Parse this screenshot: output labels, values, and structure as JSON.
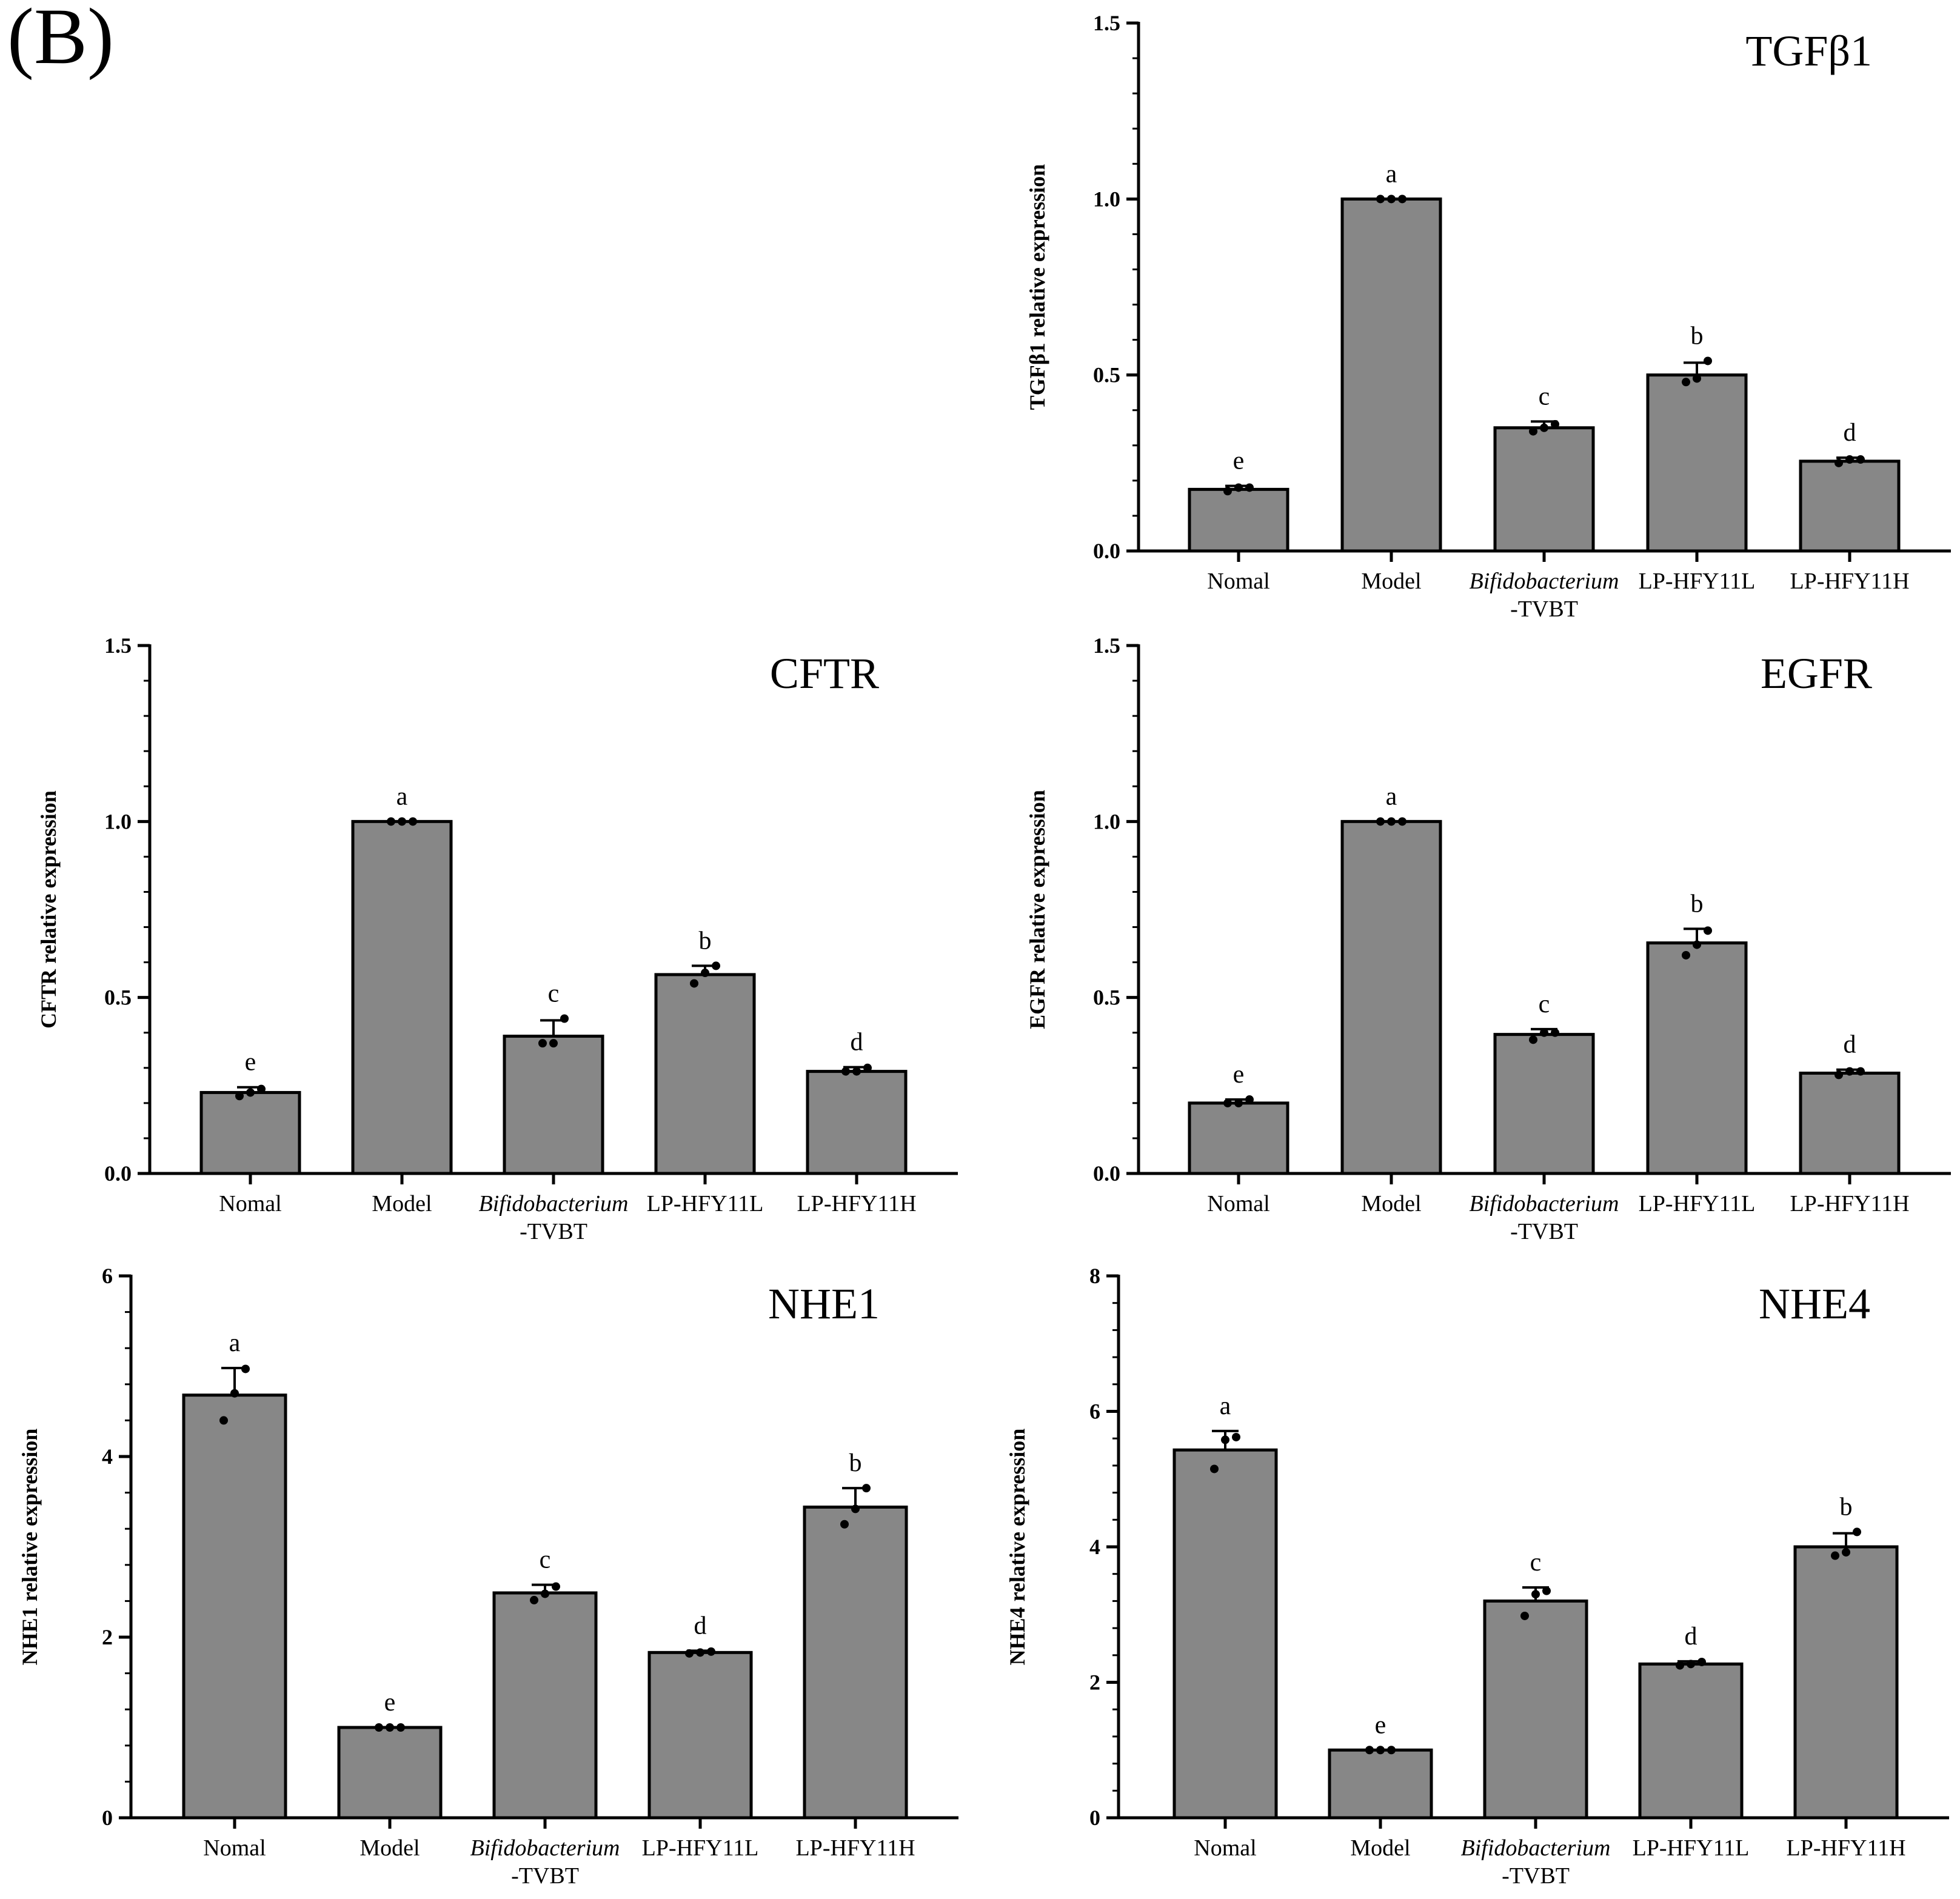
{
  "figure_label": "(B)",
  "colors": {
    "bar_fill": "#878787",
    "stroke": "#000000",
    "background": "#ffffff"
  },
  "chart_data": [
    {
      "type": "bar",
      "title": "TGFβ1",
      "ylabel": "TGFβ1 relative expression",
      "xlabel": "",
      "ylim": [
        0,
        1.5
      ],
      "yticks": [
        0.0,
        0.5,
        1.0,
        1.5
      ],
      "ytick_labels": [
        "0.0",
        "0.5",
        "1.0",
        "1.5"
      ],
      "minor_step": 0.1,
      "categories": [
        "Nomal",
        "Model",
        "Bifidobacterium-TVBT",
        "LP-HFY11L",
        "LP-HFY11H"
      ],
      "category_label_lines": [
        [
          "Nomal"
        ],
        [
          "Model"
        ],
        [
          "Bifidobacterium",
          "-TVBT"
        ],
        [
          "LP-HFY11L"
        ],
        [
          "LP-HFY11H"
        ]
      ],
      "values": [
        0.175,
        1.0,
        0.35,
        0.5,
        0.255
      ],
      "errors": [
        0.01,
        0.0,
        0.018,
        0.035,
        0.01
      ],
      "points": [
        [
          0.17,
          0.18,
          0.18
        ],
        [
          1.0,
          1.0,
          1.0
        ],
        [
          0.34,
          0.35,
          0.36
        ],
        [
          0.48,
          0.49,
          0.54
        ],
        [
          0.25,
          0.26,
          0.26
        ]
      ],
      "letters": [
        "e",
        "a",
        "c",
        "b",
        "d"
      ]
    },
    {
      "type": "bar",
      "title": "CFTR",
      "ylabel": "CFTR relative expression",
      "xlabel": "",
      "ylim": [
        0,
        1.5
      ],
      "yticks": [
        0.0,
        0.5,
        1.0,
        1.5
      ],
      "ytick_labels": [
        "0.0",
        "0.5",
        "1.0",
        "1.5"
      ],
      "minor_step": 0.1,
      "categories": [
        "Nomal",
        "Model",
        "Bifidobacterium-TVBT",
        "LP-HFY11L",
        "LP-HFY11H"
      ],
      "category_label_lines": [
        [
          "Nomal"
        ],
        [
          "Model"
        ],
        [
          "Bifidobacterium",
          "-TVBT"
        ],
        [
          "LP-HFY11L"
        ],
        [
          "LP-HFY11H"
        ]
      ],
      "values": [
        0.23,
        1.0,
        0.39,
        0.565,
        0.29
      ],
      "errors": [
        0.015,
        0.0,
        0.045,
        0.025,
        0.012
      ],
      "points": [
        [
          0.22,
          0.23,
          0.24
        ],
        [
          1.0,
          1.0,
          1.0
        ],
        [
          0.37,
          0.37,
          0.44
        ],
        [
          0.54,
          0.57,
          0.59
        ],
        [
          0.29,
          0.29,
          0.3
        ]
      ],
      "letters": [
        "e",
        "a",
        "c",
        "b",
        "d"
      ]
    },
    {
      "type": "bar",
      "title": "EGFR",
      "ylabel": "EGFR relative expression",
      "xlabel": "",
      "ylim": [
        0,
        1.5
      ],
      "yticks": [
        0.0,
        0.5,
        1.0,
        1.5
      ],
      "ytick_labels": [
        "0.0",
        "0.5",
        "1.0",
        "1.5"
      ],
      "minor_step": 0.1,
      "categories": [
        "Nomal",
        "Model",
        "Bifidobacterium-TVBT",
        "LP-HFY11L",
        "LP-HFY11H"
      ],
      "category_label_lines": [
        [
          "Nomal"
        ],
        [
          "Model"
        ],
        [
          "Bifidobacterium",
          "-TVBT"
        ],
        [
          "LP-HFY11L"
        ],
        [
          "LP-HFY11H"
        ]
      ],
      "values": [
        0.2,
        1.0,
        0.395,
        0.655,
        0.285
      ],
      "errors": [
        0.01,
        0.0,
        0.015,
        0.04,
        0.01
      ],
      "points": [
        [
          0.2,
          0.2,
          0.21
        ],
        [
          1.0,
          1.0,
          1.0
        ],
        [
          0.38,
          0.4,
          0.4
        ],
        [
          0.62,
          0.65,
          0.69
        ],
        [
          0.28,
          0.29,
          0.29
        ]
      ],
      "letters": [
        "e",
        "a",
        "c",
        "b",
        "d"
      ]
    },
    {
      "type": "bar",
      "title": "NHE1",
      "ylabel": "NHE1 relative expression",
      "xlabel": "",
      "ylim": [
        0,
        6
      ],
      "yticks": [
        0,
        2,
        4,
        6
      ],
      "ytick_labels": [
        "0",
        "2",
        "4",
        "6"
      ],
      "minor_step": 0.4,
      "categories": [
        "Nomal",
        "Model",
        "Bifidobacterium-TVBT",
        "LP-HFY11L",
        "LP-HFY11H"
      ],
      "category_label_lines": [
        [
          "Nomal"
        ],
        [
          "Model"
        ],
        [
          "Bifidobacterium",
          "-TVBT"
        ],
        [
          "LP-HFY11L"
        ],
        [
          "LP-HFY11H"
        ]
      ],
      "values": [
        4.68,
        1.0,
        2.49,
        1.83,
        3.44
      ],
      "errors": [
        0.3,
        0.0,
        0.09,
        0.02,
        0.21
      ],
      "points": [
        [
          4.4,
          4.7,
          4.97
        ],
        [
          1.0,
          1.0,
          1.0
        ],
        [
          2.41,
          2.48,
          2.56
        ],
        [
          1.82,
          1.83,
          1.84
        ],
        [
          3.25,
          3.42,
          3.65
        ]
      ],
      "letters": [
        "a",
        "e",
        "c",
        "d",
        "b"
      ]
    },
    {
      "type": "bar",
      "title": "NHE4",
      "ylabel": "NHE4 relative expression",
      "xlabel": "",
      "ylim": [
        0,
        8
      ],
      "yticks": [
        0,
        2,
        4,
        6,
        8
      ],
      "ytick_labels": [
        "0",
        "2",
        "4",
        "6",
        "8"
      ],
      "minor_step": 0.4,
      "categories": [
        "Nomal",
        "Model",
        "Bifidobacterium-TVBT",
        "LP-HFY11L",
        "LP-HFY11H"
      ],
      "category_label_lines": [
        [
          "Nomal"
        ],
        [
          "Model"
        ],
        [
          "Bifidobacterium",
          "-TVBT"
        ],
        [
          "LP-HFY11L"
        ],
        [
          "LP-HFY11H"
        ]
      ],
      "values": [
        5.43,
        1.0,
        3.2,
        2.27,
        4.0
      ],
      "errors": [
        0.28,
        0.0,
        0.2,
        0.04,
        0.2
      ],
      "points": [
        [
          5.15,
          5.58,
          5.62
        ],
        [
          1.0,
          1.0,
          1.0
        ],
        [
          2.98,
          3.3,
          3.35
        ],
        [
          2.25,
          2.27,
          2.3
        ],
        [
          3.87,
          3.92,
          4.22
        ]
      ],
      "letters": [
        "a",
        "e",
        "c",
        "d",
        "b"
      ]
    }
  ]
}
